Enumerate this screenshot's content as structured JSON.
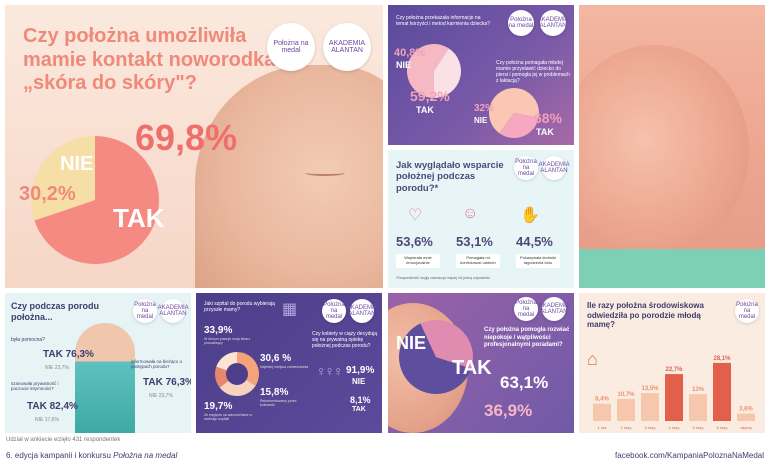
{
  "logos": {
    "polozna": "Położna na medal",
    "akademia": "AKADEMIA ALANTAN"
  },
  "tile1": {
    "title": "Czy położna umożliwiła mamie kontakt noworodka „skóra do skóry\"?",
    "yes_label": "TAK",
    "no_label": "NIE",
    "yes_value": "69,8%",
    "no_value": "30,2%"
  },
  "tile2": {
    "q1": "Czy położna przekazała informacje na temat korzyści i metod karmienia dziecka?",
    "q1_yes": "59,2%",
    "q1_no": "40,8%",
    "q1_yes_label": "TAK",
    "q1_no_label": "NIE",
    "q2": "Czy położna pomagała młodej mamie przystawić dziecko do piersi i pomogła jej w problemach z laktacją?",
    "q2_yes": "68%",
    "q2_no": "32%",
    "q2_yes_label": "TAK",
    "q2_no_label": "NIE"
  },
  "tile3": {
    "title": "Jak wyglądało wsparcie położnej podczas porodu?*",
    "items": [
      {
        "value": "53,6%",
        "label": "Wspierała mnie emocjonalnie"
      },
      {
        "value": "53,1%",
        "label": "Pomagała mi kontrolować oddech"
      },
      {
        "value": "44,5%",
        "label": "Pokazywała techniki łagodzenia bólu"
      }
    ],
    "footnote": "*Respondentki mogły zaznaczyć więcej niż jedną odpowiedź"
  },
  "tile4": {
    "title": "Czy podczas porodu położna...",
    "q1": "była pomocna?",
    "q1_yes": "TAK 76,3%",
    "q1_no": "NIE 23,7%",
    "q2": "informowała na bieżąco o postępach porodu?",
    "q2_yes": "TAK 76,3%",
    "q2_no": "NIE 23,7%",
    "q3": "szanowała prywatność i poczucie intymności?",
    "q3_yes": "TAK 82,4%",
    "q3_no": "NIE 17,6%"
  },
  "tile5": {
    "q1": "Jaki szpital do porodu wybierają przyszłe mamy?",
    "stats": [
      {
        "value": "33,9%",
        "label": "W którym pracuje moja lekarz prowadzący"
      },
      {
        "value": "30,6 %",
        "label": "Najbliżej miejsca zamieszkania"
      },
      {
        "value": "15,8%",
        "label": "Rekomendowany przez koleżanki"
      },
      {
        "value": "19,7%",
        "label": "Ze względu na warunki/dane w rankingu szpitali"
      }
    ],
    "q2": "Czy kobiety w ciąży decydują się na prywatną opiekę położnej podczas porodu?",
    "q2_no": "91,9%",
    "q2_no_label": "NIE",
    "q2_yes": "8,1%",
    "q2_yes_label": "TAK"
  },
  "tile6": {
    "question": "Czy położna pomogła rozwiać niepokoje / wątpliwości profesjonalnymi poradami?",
    "yes_label": "TAK",
    "no_label": "NIE",
    "yes_value": "63,1%",
    "no_value": "36,9%"
  },
  "tile7": {
    "title": "Ile razy położna środowiskowa odwiedziła po porodzie młodą mamę?"
  },
  "footer": {
    "note": "Udział w ankiecie wzięło 431 respondentek",
    "edition_prefix": "6. edycja kampanii i konkursu ",
    "edition_name": "Położna na medal",
    "link": "facebook.com/KampaniaPoloznaNaMedal"
  },
  "chart_data": [
    {
      "type": "pie",
      "categories": [
        "TAK",
        "NIE"
      ],
      "values": [
        69.8,
        30.2
      ]
    },
    {
      "type": "pie",
      "categories": [
        "TAK",
        "NIE"
      ],
      "values": [
        59.2,
        40.8
      ]
    },
    {
      "type": "pie",
      "categories": [
        "TAK",
        "NIE"
      ],
      "values": [
        68,
        32
      ]
    },
    {
      "type": "pie",
      "categories": [
        "TAK",
        "NIE"
      ],
      "values": [
        63.1,
        36.9
      ]
    },
    {
      "type": "bar",
      "title": "Ile razy położna środowiskowa odwiedziła po porodzie młodą mamę?",
      "categories": [
        "1 raz",
        "2 razy",
        "3 razy",
        "4 razy",
        "5 razy",
        "6 razy",
        "więcej"
      ],
      "values": [
        8.4,
        10.7,
        13.5,
        22.7,
        13,
        28.1,
        3.6
      ],
      "value_labels": [
        "8,4%",
        "10,7%",
        "13,5%",
        "22,7%",
        "13%",
        "28,1%",
        "3,6%"
      ],
      "ylim": [
        0,
        30
      ]
    }
  ]
}
